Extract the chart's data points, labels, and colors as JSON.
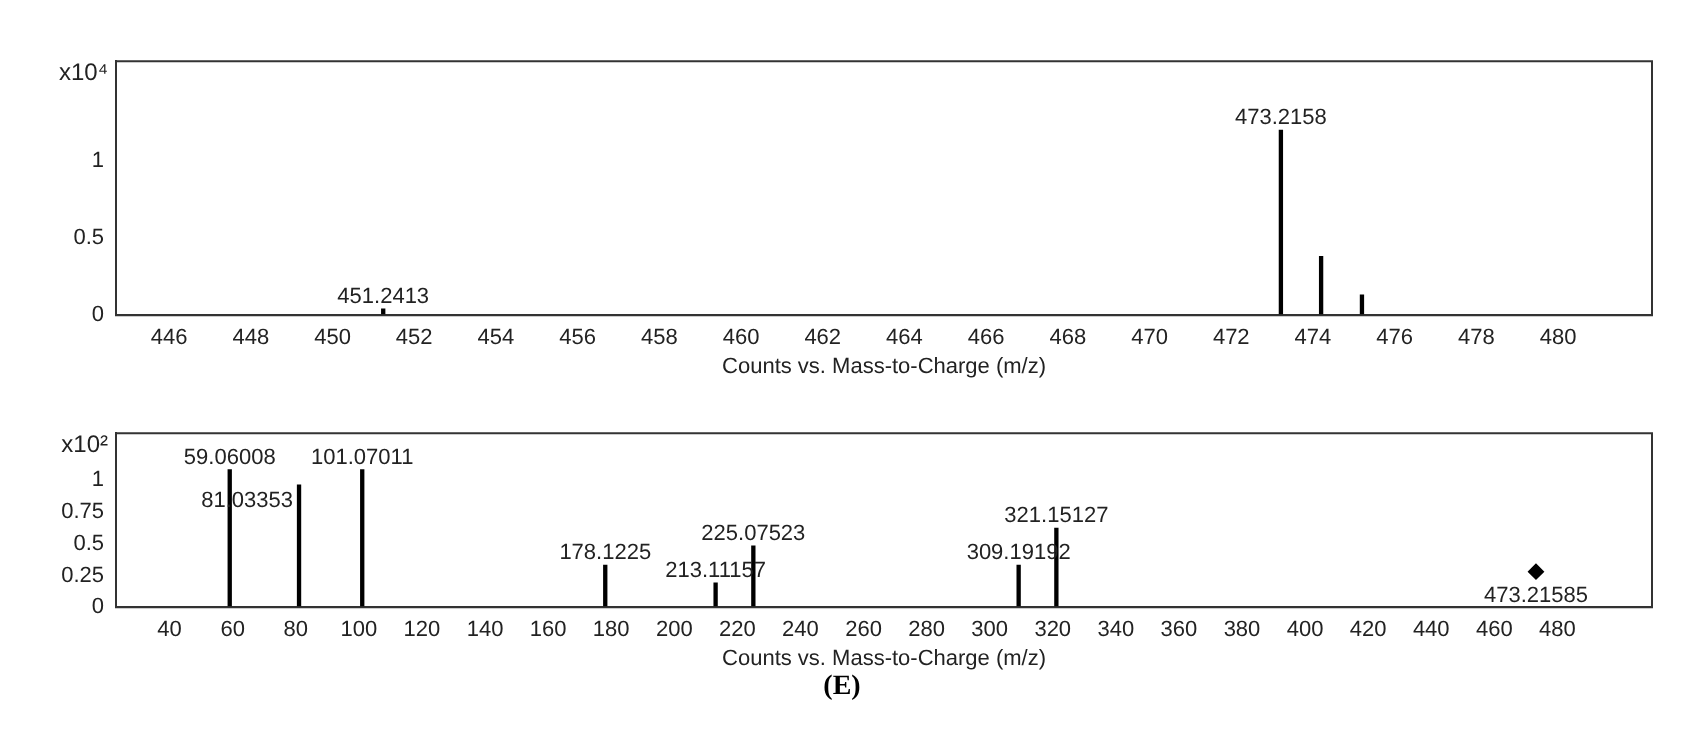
{
  "chart_data": [
    {
      "type": "bar",
      "ylabel": "x10⁴",
      "xlabel": "Counts vs. Mass-to-Charge (m/z)",
      "color": "#000000",
      "x": [
        451.2413,
        473.2158,
        474.2,
        475.2
      ],
      "values": [
        0.04,
        1.2,
        0.38,
        0.13
      ],
      "annotations": [
        {
          "text": "451.2413",
          "x": 451.2413,
          "y": 0.04
        },
        {
          "text": "473.2158",
          "x": 473.2158,
          "y": 1.2
        }
      ],
      "xlim": [
        444.7,
        482.3
      ],
      "xticks": [
        446,
        448,
        450,
        452,
        454,
        456,
        458,
        460,
        462,
        464,
        466,
        468,
        470,
        472,
        474,
        476,
        478,
        480
      ],
      "ylim": [
        0,
        1.65
      ],
      "yticks": [
        0,
        0.5,
        1
      ],
      "grid": false,
      "legend": false
    },
    {
      "type": "bar",
      "ylabel": "x10²",
      "xlabel": "Counts vs. Mass-to-Charge (m/z)",
      "series": [
        {
          "color": "#000000",
          "x": [
            59.06008,
            81.03353,
            101.07011,
            178.1225,
            213.11157,
            225.07523,
            309.19192,
            321.15127
          ],
          "values": [
            1.08,
            0.96,
            1.08,
            0.33,
            0.19,
            0.48,
            0.33,
            0.62
          ]
        },
        {
          "type": "scatter",
          "color": "#000000",
          "marker": "diamond",
          "x": [
            473.21585
          ],
          "values": [
            0.28
          ]
        }
      ],
      "annotations": [
        {
          "text": "59.06008",
          "x": 59.06008,
          "y": 1.08
        },
        {
          "text": "81.03353",
          "x": 81.03353,
          "y": 0.96
        },
        {
          "text": "101.07011",
          "x": 101.07011,
          "y": 1.08
        },
        {
          "text": "178.1225",
          "x": 178.1225,
          "y": 0.33
        },
        {
          "text": "213.11157",
          "x": 213.11157,
          "y": 0.19
        },
        {
          "text": "225.07523",
          "x": 225.07523,
          "y": 0.48
        },
        {
          "text": "309.19192",
          "x": 309.19192,
          "y": 0.33
        },
        {
          "text": "321.15127",
          "x": 321.15127,
          "y": 0.62
        },
        {
          "text": "473.21585",
          "x": 473.21585,
          "y": 0.28
        },
        "(E)"
      ],
      "xlim": [
        23,
        510
      ],
      "xticks": [
        40,
        60,
        80,
        100,
        120,
        140,
        160,
        180,
        200,
        220,
        240,
        260,
        280,
        300,
        320,
        340,
        360,
        380,
        400,
        420,
        440,
        460,
        480
      ],
      "ylim": [
        0,
        1.37
      ],
      "yticks": [
        0,
        0.25,
        0.5,
        0.75,
        1
      ],
      "grid": false,
      "legend": false
    }
  ]
}
